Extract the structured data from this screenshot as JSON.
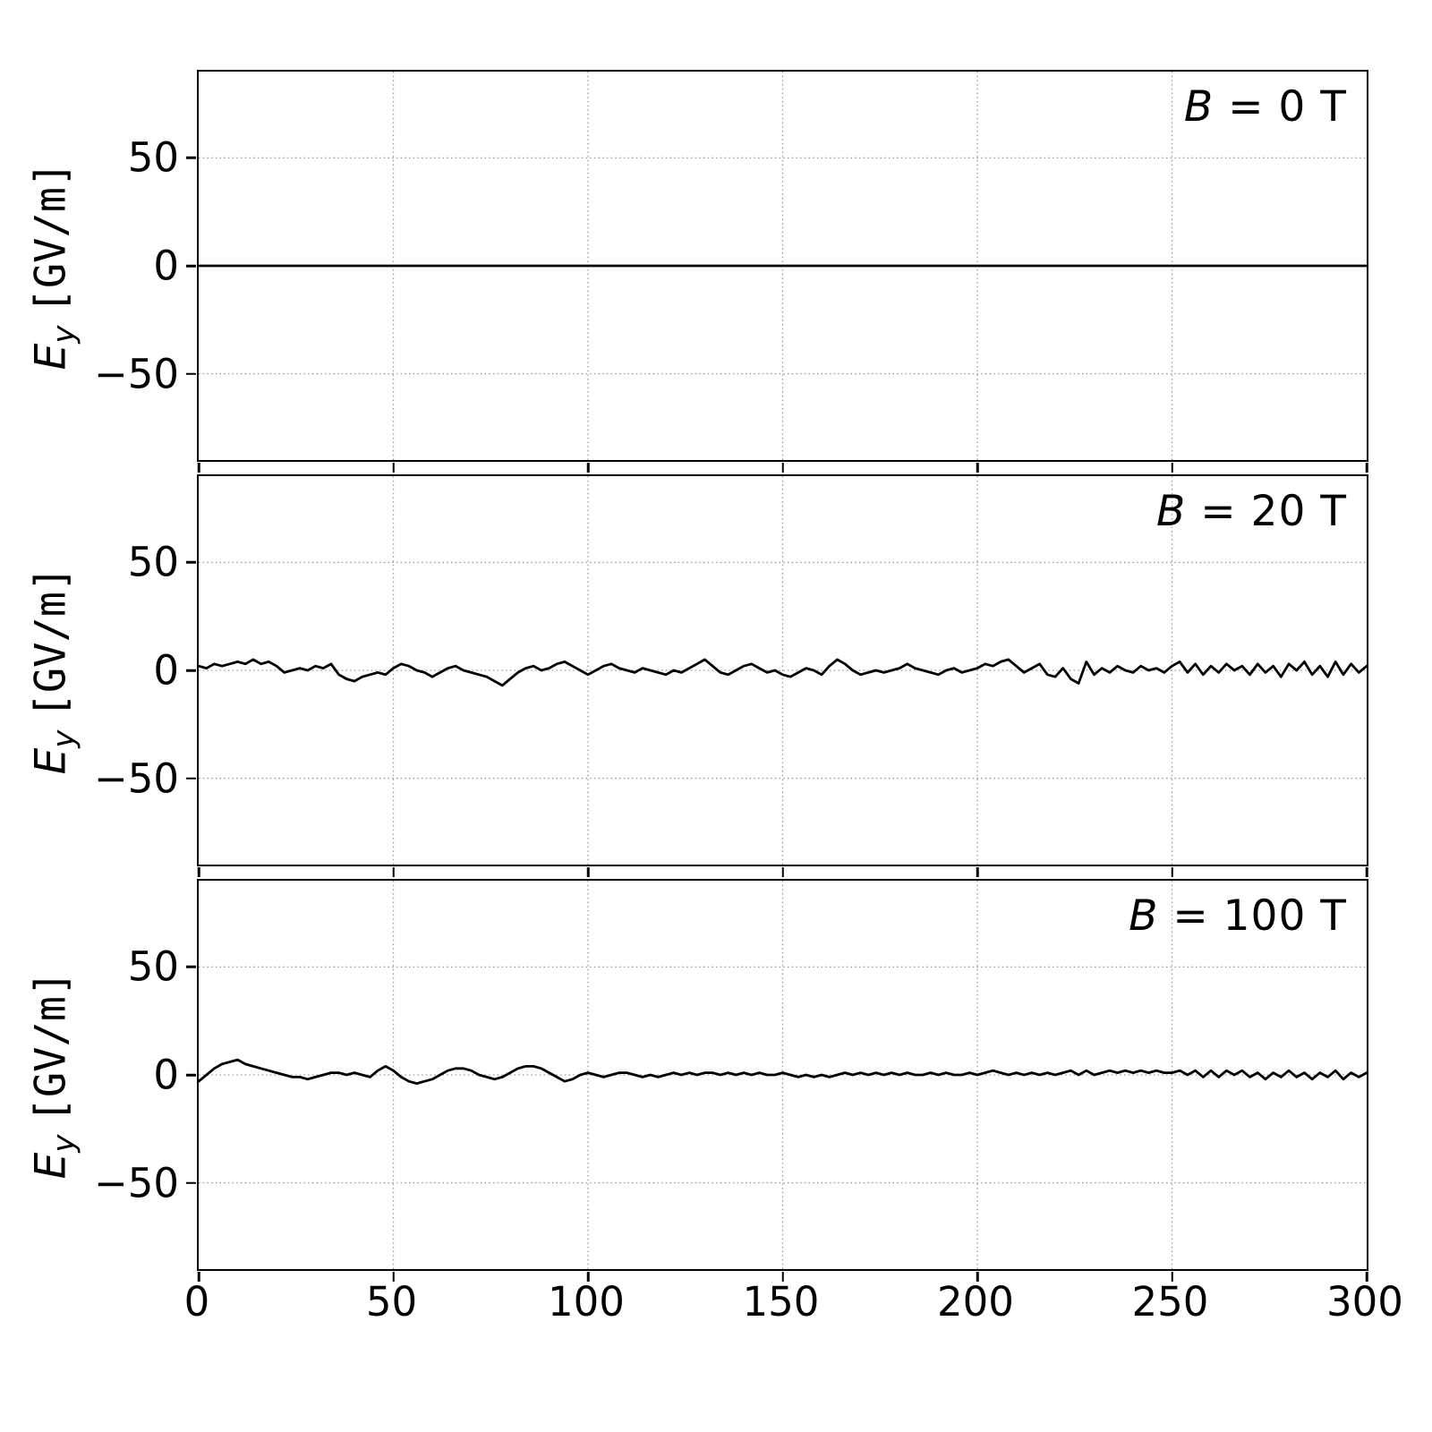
{
  "figure": {
    "background": "#ffffff",
    "trace_color": "#000000",
    "grid_color": "#9a9a9a"
  },
  "axes": {
    "xlim": [
      0,
      300
    ],
    "ylim": [
      -90,
      90
    ],
    "x_ticks": [
      0,
      50,
      100,
      150,
      200,
      250,
      300
    ],
    "y_ticks": [
      -50,
      0,
      50
    ],
    "grid_x": [
      50,
      100,
      150,
      200,
      250
    ],
    "grid_y": [
      -50,
      0,
      50
    ],
    "x_tick_labels": [
      "0",
      "50",
      "100",
      "150",
      "200",
      "250",
      "300"
    ],
    "y_tick_labels": [
      "50",
      "0",
      "−50"
    ],
    "ylabel": {
      "var": "E",
      "sub": "y",
      "unit": "[GV/m]",
      "full": "E_y [GV/m]"
    },
    "xlabel": ""
  },
  "chart_data": [
    {
      "type": "line",
      "title": "B = 0 T",
      "label_var": "B",
      "label_rest": " = 0 T",
      "xlabel": "",
      "ylabel": "E_y [GV/m]",
      "xlim": [
        0,
        300
      ],
      "ylim": [
        -90,
        90
      ],
      "grid": true,
      "x_start": 0,
      "x_step": 300,
      "values": [
        0,
        0
      ]
    },
    {
      "type": "line",
      "title": "B = 20 T",
      "label_var": "B",
      "label_rest": " = 20 T",
      "xlabel": "",
      "ylabel": "E_y [GV/m]",
      "xlim": [
        0,
        300
      ],
      "ylim": [
        -90,
        90
      ],
      "grid": true,
      "x_start": 0,
      "x_step": 2,
      "values": [
        2,
        1,
        3,
        2,
        3,
        4,
        3,
        5,
        3,
        4,
        2,
        -1,
        0,
        1,
        0,
        2,
        1,
        3,
        -2,
        -4,
        -5,
        -3,
        -2,
        -1,
        -2,
        1,
        3,
        2,
        0,
        -1,
        -3,
        -1,
        1,
        2,
        0,
        -1,
        -2,
        -3,
        -5,
        -7,
        -4,
        -1,
        1,
        2,
        0,
        1,
        3,
        4,
        2,
        0,
        -2,
        0,
        2,
        3,
        1,
        0,
        -1,
        1,
        0,
        -1,
        -2,
        0,
        -1,
        1,
        3,
        5,
        2,
        -1,
        -2,
        0,
        2,
        3,
        1,
        -1,
        0,
        -2,
        -3,
        -1,
        1,
        0,
        -2,
        2,
        5,
        3,
        0,
        -2,
        -1,
        0,
        -1,
        0,
        1,
        3,
        1,
        0,
        -1,
        -2,
        0,
        1,
        -1,
        0,
        1,
        3,
        2,
        4,
        5,
        2,
        -1,
        1,
        3,
        -2,
        -3,
        1,
        -4,
        -6,
        4,
        -2,
        1,
        -1,
        2,
        0,
        -1,
        2,
        0,
        1,
        -1,
        2,
        4,
        -1,
        3,
        -2,
        2,
        -1,
        3,
        0,
        2,
        -2,
        3,
        -1,
        2,
        -3,
        3,
        0,
        4,
        -2,
        2,
        -3,
        4,
        -2,
        3,
        -1,
        2
      ]
    },
    {
      "type": "line",
      "title": "B = 100 T",
      "label_var": "B",
      "label_rest": " = 100 T",
      "xlabel": "",
      "ylabel": "E_y [GV/m]",
      "xlim": [
        0,
        300
      ],
      "ylim": [
        -90,
        90
      ],
      "grid": true,
      "x_start": 0,
      "x_step": 2,
      "values": [
        -3,
        0,
        3,
        5,
        6,
        7,
        5,
        4,
        3,
        2,
        1,
        0,
        -1,
        -1,
        -2,
        -1,
        0,
        1,
        1,
        0,
        1,
        0,
        -1,
        2,
        4,
        2,
        -1,
        -3,
        -4,
        -3,
        -2,
        0,
        2,
        3,
        3,
        2,
        0,
        -1,
        -2,
        -1,
        1,
        3,
        4,
        4,
        3,
        1,
        -1,
        -3,
        -2,
        0,
        1,
        0,
        -1,
        0,
        1,
        1,
        0,
        -1,
        0,
        -1,
        0,
        1,
        0,
        1,
        0,
        1,
        1,
        0,
        1,
        0,
        1,
        0,
        1,
        0,
        0,
        1,
        0,
        -1,
        0,
        -1,
        0,
        -1,
        0,
        1,
        0,
        1,
        0,
        1,
        0,
        1,
        0,
        1,
        0,
        0,
        1,
        0,
        1,
        0,
        0,
        1,
        0,
        1,
        2,
        1,
        0,
        1,
        0,
        1,
        0,
        1,
        0,
        1,
        2,
        0,
        2,
        0,
        1,
        2,
        1,
        2,
        1,
        2,
        1,
        2,
        1,
        1,
        2,
        0,
        2,
        -1,
        2,
        -1,
        2,
        0,
        2,
        -1,
        1,
        -2,
        1,
        -1,
        2,
        -1,
        1,
        -2,
        1,
        -1,
        2,
        -2,
        1,
        -1,
        1
      ]
    }
  ]
}
